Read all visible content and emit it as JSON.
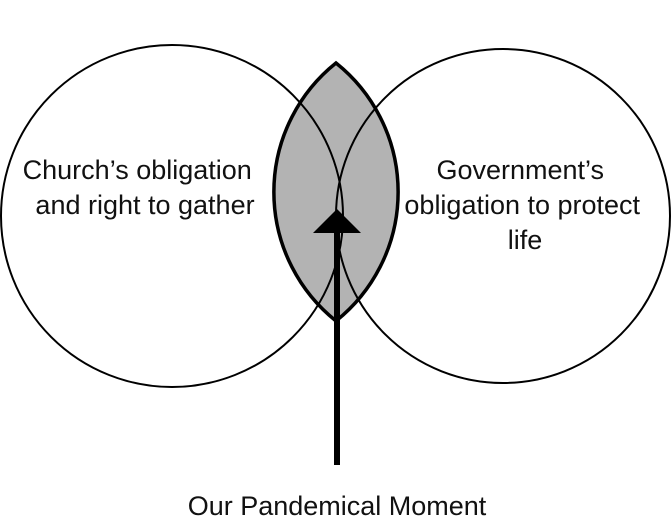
{
  "diagram": {
    "left_circle": {
      "label_lines": [
        "Church’s obligation",
        "and right to gather"
      ]
    },
    "right_circle": {
      "label_lines": [
        "Government’s",
        "obligation to protect",
        "life"
      ]
    },
    "overlap": {
      "fill_color": "#b3b3b3"
    },
    "arrow": {
      "direction": "up",
      "color": "#000000"
    },
    "caption": "Our Pandemical Moment"
  }
}
